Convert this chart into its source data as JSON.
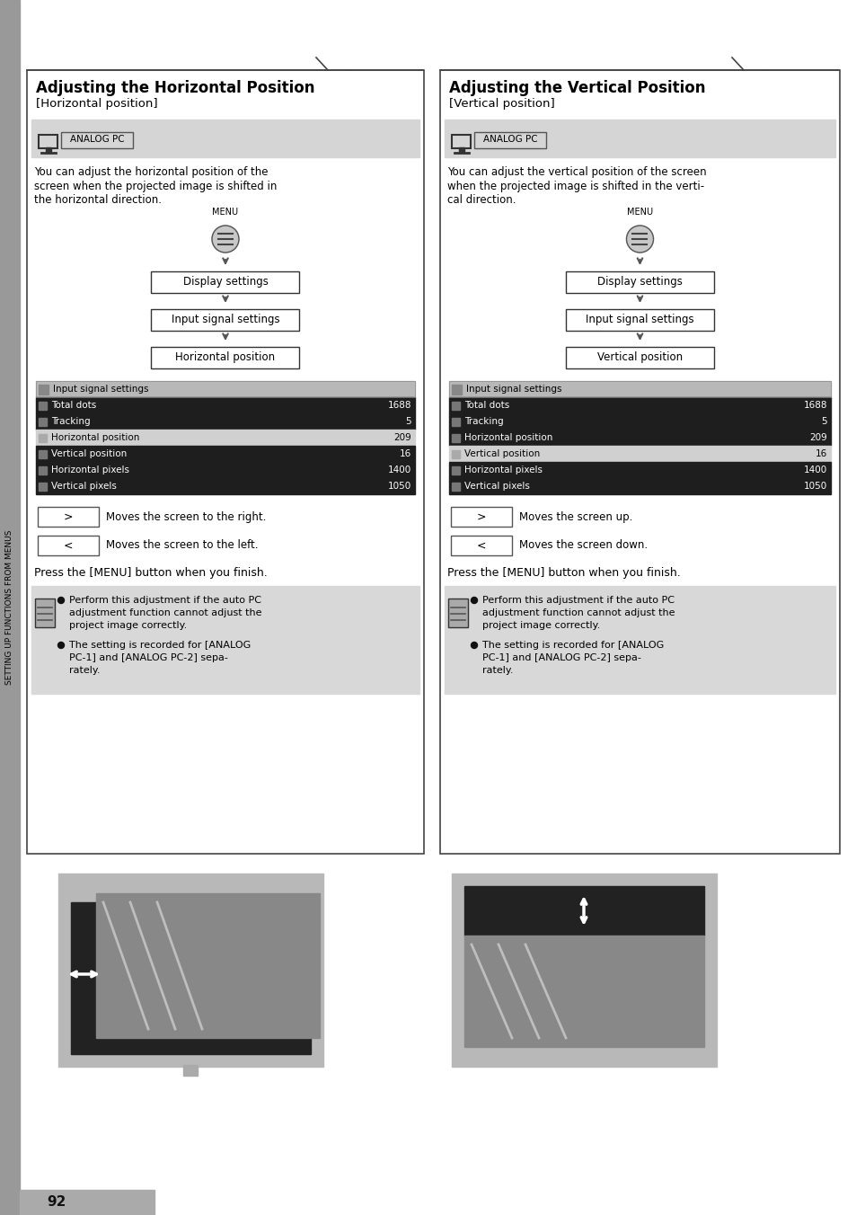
{
  "page_bg": "#ffffff",
  "page_num": "92",
  "sidebar_text": "SETTING UP FUNCTIONS FROM MENUS",
  "left": {
    "title": "Adjusting the Horizontal Position",
    "subtitle": "[Horizontal position]",
    "desc": [
      "You can adjust the horizontal position of the",
      "screen when the projected image is shifted in",
      "the horizontal direction."
    ],
    "flow": [
      "Display settings",
      "Input signal settings",
      "Horizontal position"
    ],
    "table_rows": [
      [
        "Total dots",
        "1688",
        true
      ],
      [
        "Tracking",
        "5",
        true
      ],
      [
        "Horizontal position",
        "209",
        false
      ],
      [
        "Vertical position",
        "16",
        true
      ],
      [
        "Horizontal pixels",
        "1400",
        true
      ],
      [
        "Vertical pixels",
        "1050",
        true
      ]
    ],
    "btn1_label": "Moves the screen to the right.",
    "btn2_label": "Moves the screen to the left.",
    "note1": [
      "Perform this adjustment if the auto PC",
      "adjustment function cannot adjust the",
      "project image correctly."
    ],
    "note2": [
      "The setting is recorded for [ANALOG",
      "PC-1] and [ANALOG PC-2] sepa-",
      "rately."
    ]
  },
  "right": {
    "title": "Adjusting the Vertical Position",
    "subtitle": "[Vertical position]",
    "desc": [
      "You can adjust the vertical position of the screen",
      "when the projected image is shifted in the verti-",
      "cal direction."
    ],
    "flow": [
      "Display settings",
      "Input signal settings",
      "Vertical position"
    ],
    "table_rows": [
      [
        "Total dots",
        "1688",
        true
      ],
      [
        "Tracking",
        "5",
        true
      ],
      [
        "Horizontal position",
        "209",
        true
      ],
      [
        "Vertical position",
        "16",
        false
      ],
      [
        "Horizontal pixels",
        "1400",
        true
      ],
      [
        "Vertical pixels",
        "1050",
        true
      ]
    ],
    "btn1_label": "Moves the screen up.",
    "btn2_label": "Moves the screen down.",
    "note1": [
      "Perform this adjustment if the auto PC",
      "adjustment function cannot adjust the",
      "project image correctly."
    ],
    "note2": [
      "The setting is recorded for [ANALOG",
      "PC-1] and [ANALOG PC-2] sepa-",
      "rately."
    ]
  }
}
